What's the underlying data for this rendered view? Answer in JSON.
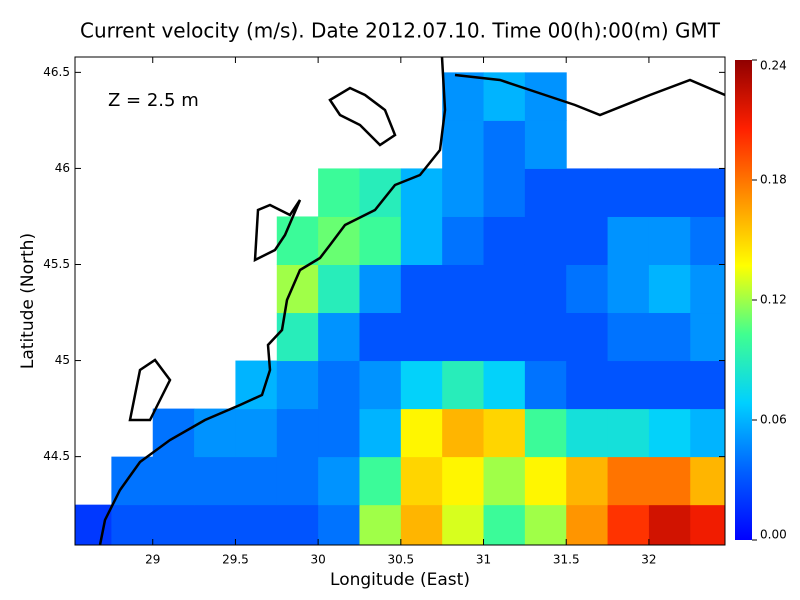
{
  "chart_data": {
    "type": "heatmap",
    "title": "Current velocity (m/s). Date 2012.07.10. Time 00(h):00(m) GMT",
    "annotation": "Z = 2.5 m",
    "x_label": "Longitude (East)",
    "y_label": "Latitude (North)",
    "xlim": [
      28.53,
      32.46
    ],
    "ylim": [
      44.04,
      46.58
    ],
    "xticks": [
      29,
      29.5,
      30,
      30.5,
      31,
      31.5,
      32
    ],
    "yticks": [
      44.5,
      45,
      45.5,
      46,
      46.5
    ],
    "clim": [
      0,
      0.24
    ],
    "colorbar_ticks": [
      {
        "value": 0,
        "label": "0.00"
      },
      0.06,
      0.12,
      0.18,
      0.24
    ],
    "colormap": [
      "#0000ff",
      "#0060ff",
      "#00d0ff",
      "#40ff90",
      "#ffff00",
      "#ff9000",
      "#ff2000",
      "#900000"
    ],
    "x": [
      28.625,
      28.875,
      29.125,
      29.375,
      29.625,
      29.875,
      30.125,
      30.375,
      30.625,
      30.875,
      31.125,
      31.375,
      31.625,
      31.875,
      32.125,
      32.375
    ],
    "y": [
      44.125,
      44.375,
      44.625,
      44.875,
      45.125,
      45.375,
      45.625,
      45.875,
      46.125,
      46.375
    ],
    "values": [
      [
        0.02,
        0.03,
        0.03,
        0.03,
        0.03,
        0.03,
        0.04,
        0.12,
        0.16,
        0.13,
        0.1,
        0.12,
        0.17,
        0.2,
        0.22,
        0.21
      ],
      [
        null,
        0.04,
        0.04,
        0.04,
        0.04,
        0.04,
        0.05,
        0.1,
        0.15,
        0.14,
        0.12,
        0.14,
        0.16,
        0.18,
        0.18,
        0.16
      ],
      [
        null,
        null,
        0.04,
        0.05,
        0.05,
        0.04,
        0.04,
        0.06,
        0.14,
        0.16,
        0.15,
        0.1,
        0.08,
        0.08,
        0.07,
        0.06
      ],
      [
        null,
        null,
        null,
        null,
        0.06,
        0.05,
        0.04,
        0.05,
        0.07,
        0.09,
        0.07,
        0.04,
        0.03,
        0.03,
        0.03,
        0.03
      ],
      [
        null,
        null,
        null,
        null,
        null,
        0.09,
        0.05,
        0.03,
        0.03,
        0.03,
        0.03,
        0.03,
        0.03,
        0.04,
        0.04,
        0.05
      ],
      [
        null,
        null,
        null,
        null,
        null,
        0.12,
        0.09,
        0.05,
        0.03,
        0.03,
        0.03,
        0.03,
        0.04,
        0.05,
        0.06,
        0.05
      ],
      [
        null,
        null,
        null,
        null,
        null,
        0.1,
        0.11,
        0.1,
        0.06,
        0.04,
        0.03,
        0.03,
        0.03,
        0.05,
        0.05,
        0.04
      ],
      [
        null,
        null,
        null,
        null,
        null,
        null,
        0.1,
        0.09,
        0.06,
        0.05,
        0.04,
        0.03,
        0.03,
        0.03,
        0.03,
        0.03
      ],
      [
        null,
        null,
        null,
        null,
        null,
        null,
        null,
        null,
        null,
        0.05,
        0.04,
        0.05,
        null,
        null,
        null,
        null
      ],
      [
        null,
        null,
        null,
        null,
        null,
        null,
        null,
        null,
        null,
        0.05,
        0.06,
        0.05,
        null,
        null,
        null,
        null
      ]
    ]
  }
}
